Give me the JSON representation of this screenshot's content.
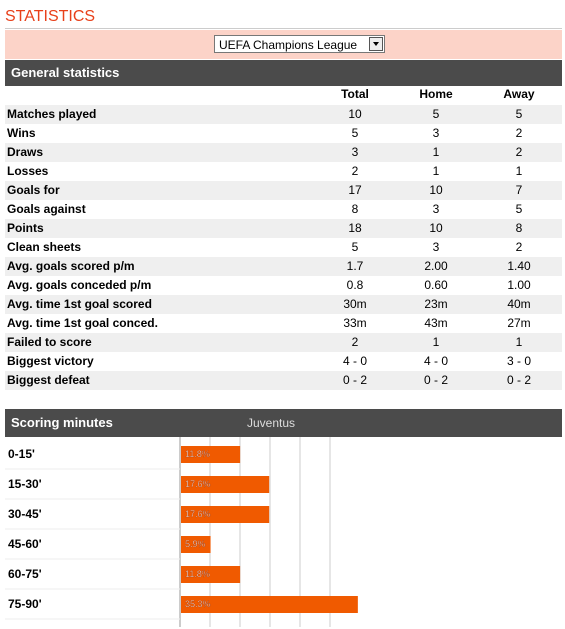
{
  "header": {
    "title": "STATISTICS"
  },
  "competition": {
    "selected": "UEFA Champions League"
  },
  "general": {
    "title": "General statistics",
    "columns": [
      "Total",
      "Home",
      "Away"
    ],
    "rows": [
      [
        "Matches played",
        "10",
        "5",
        "5"
      ],
      [
        "Wins",
        "5",
        "3",
        "2"
      ],
      [
        "Draws",
        "3",
        "1",
        "2"
      ],
      [
        "Losses",
        "2",
        "1",
        "1"
      ],
      [
        "Goals for",
        "17",
        "10",
        "7"
      ],
      [
        "Goals against",
        "8",
        "3",
        "5"
      ],
      [
        "Points",
        "18",
        "10",
        "8"
      ],
      [
        "Clean sheets",
        "5",
        "3",
        "2"
      ],
      [
        "Avg. goals scored p/m",
        "1.7",
        "2.00",
        "1.40"
      ],
      [
        "Avg. goals conceded p/m",
        "0.8",
        "0.60",
        "1.00"
      ],
      [
        "Avg. time 1st goal scored",
        "30m",
        "23m",
        "40m"
      ],
      [
        "Avg. time 1st goal conced.",
        "33m",
        "43m",
        "27m"
      ],
      [
        "Failed to score",
        "2",
        "1",
        "1"
      ],
      [
        "Biggest victory",
        "4 - 0",
        "4 - 0",
        "3 - 0"
      ],
      [
        "Biggest defeat",
        "0 - 2",
        "0 - 2",
        "0 - 2"
      ]
    ]
  },
  "scoring": {
    "title": "Scoring minutes",
    "team": "Juventus",
    "rows": [
      {
        "label": "0-15'",
        "value": 11.8,
        "value_label": "11.8%"
      },
      {
        "label": "15-30'",
        "value": 17.6,
        "value_label": "17.6%"
      },
      {
        "label": "30-45'",
        "value": 17.6,
        "value_label": "17.6%"
      },
      {
        "label": "45-60'",
        "value": 5.9,
        "value_label": "5.9%"
      },
      {
        "label": "60-75'",
        "value": 11.8,
        "value_label": "11.8%"
      },
      {
        "label": "75-90'",
        "value": 35.3,
        "value_label": "35.3%"
      }
    ]
  }
}
